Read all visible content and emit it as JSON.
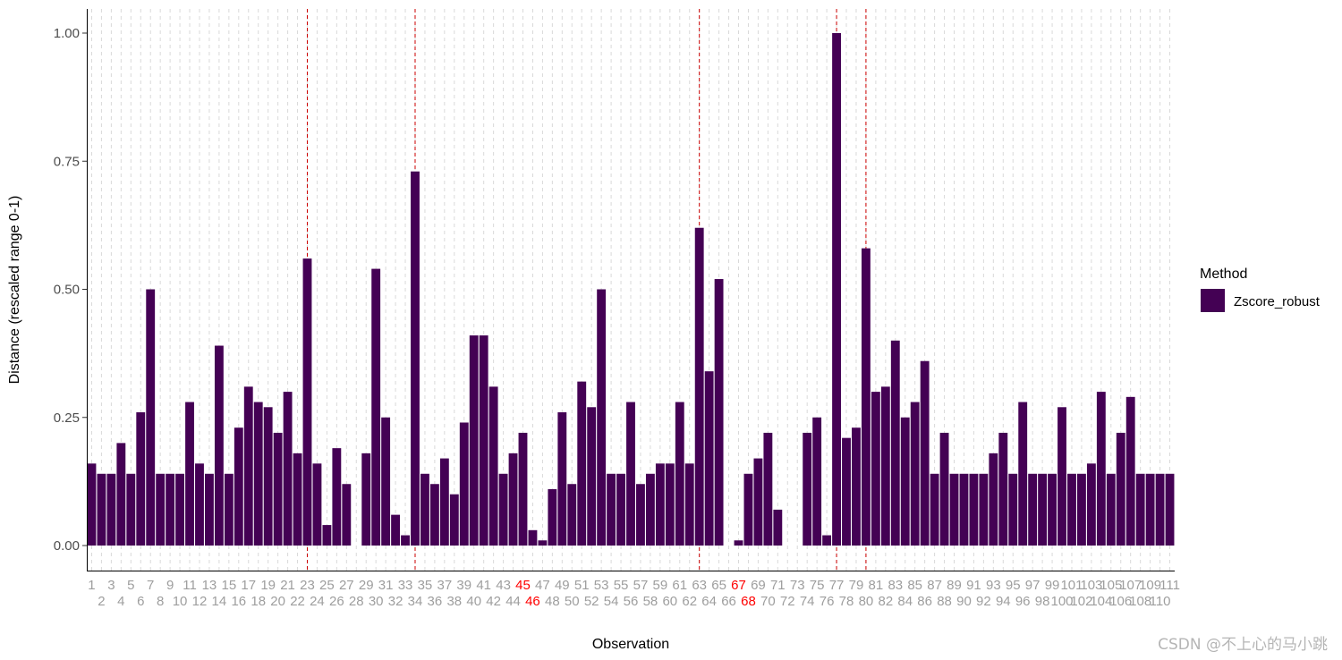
{
  "chart_data": {
    "type": "bar",
    "xlabel": "Observation",
    "ylabel": "Distance (rescaled range 0-1)",
    "ylim": [
      -0.05,
      1.05
    ],
    "yticks": [
      "0.00",
      "0.25",
      "0.50",
      "0.75",
      "1.00"
    ],
    "grid": "vertical dashed per observation",
    "legend": {
      "title": "Method",
      "position": "right",
      "entries": [
        "Zscore_robust"
      ]
    },
    "series": [
      {
        "name": "Zscore_robust",
        "color": "#440154",
        "values": [
          0.16,
          0.14,
          0.14,
          0.2,
          0.14,
          0.26,
          0.5,
          0.14,
          0.14,
          0.14,
          0.28,
          0.16,
          0.14,
          0.39,
          0.14,
          0.23,
          0.31,
          0.28,
          0.27,
          0.22,
          0.3,
          0.18,
          0.56,
          0.16,
          0.04,
          0.19,
          0.12,
          0.0,
          0.18,
          0.54,
          0.25,
          0.06,
          0.02,
          0.73,
          0.14,
          0.12,
          0.17,
          0.1,
          0.24,
          0.41,
          0.41,
          0.31,
          0.14,
          0.18,
          0.22,
          0.03,
          0.01,
          0.11,
          0.26,
          0.12,
          0.32,
          0.27,
          0.5,
          0.14,
          0.14,
          0.28,
          0.12,
          0.14,
          0.16,
          0.16,
          0.28,
          0.16,
          0.62,
          0.34,
          0.52,
          0.0,
          0.01,
          0.14,
          0.17,
          0.22,
          0.07,
          0.0,
          0.0,
          0.22,
          0.25,
          0.02,
          1.0,
          0.21,
          0.23,
          0.58,
          0.3,
          0.31,
          0.4,
          0.25,
          0.28,
          0.36,
          0.14,
          0.22,
          0.14,
          0.14,
          0.14,
          0.14,
          0.18,
          0.22,
          0.14,
          0.28,
          0.14,
          0.14,
          0.14,
          0.27,
          0.14,
          0.14,
          0.16,
          0.3,
          0.14,
          0.22,
          0.29,
          0.14,
          0.14,
          0.14,
          0.14
        ]
      }
    ],
    "highlighted_observations": [
      23,
      34,
      63,
      77,
      80
    ],
    "red_labels": [
      45,
      46,
      67,
      68
    ],
    "highlight_color": "#cc0000"
  },
  "watermark": "CSDN @不上心的马小跳"
}
